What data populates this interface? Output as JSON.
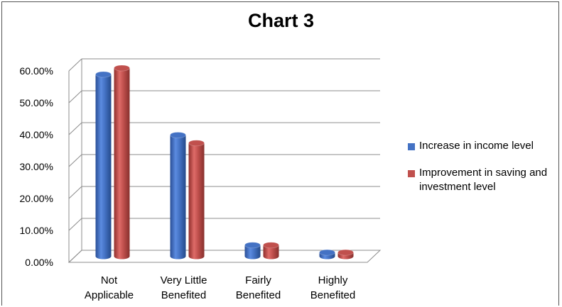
{
  "chart_data": {
    "type": "bar",
    "title": "Chart 3",
    "categories": [
      [
        "Not",
        "Applicable"
      ],
      [
        "Very Little",
        "Benefited"
      ],
      [
        "Fairly",
        "Benefited"
      ],
      [
        "Highly",
        "Benefited"
      ]
    ],
    "series": [
      {
        "name": "Increase in income level",
        "color": "#4472c4",
        "values": [
          0.57,
          0.38,
          0.035,
          0.012
        ]
      },
      {
        "name": "Improvement in saving and investment level",
        "label_lines": [
          "Improvement in saving and",
          "investment level"
        ],
        "color": "#c0504d",
        "values": [
          0.59,
          0.355,
          0.035,
          0.012
        ]
      }
    ],
    "ylim": [
      0,
      0.6
    ],
    "yticks": [
      "0.00%",
      "10.00%",
      "20.00%",
      "30.00%",
      "40.00%",
      "50.00%",
      "60.00%"
    ],
    "grid": true,
    "legend_position": "right",
    "bar_style": "3d-cylinder"
  }
}
